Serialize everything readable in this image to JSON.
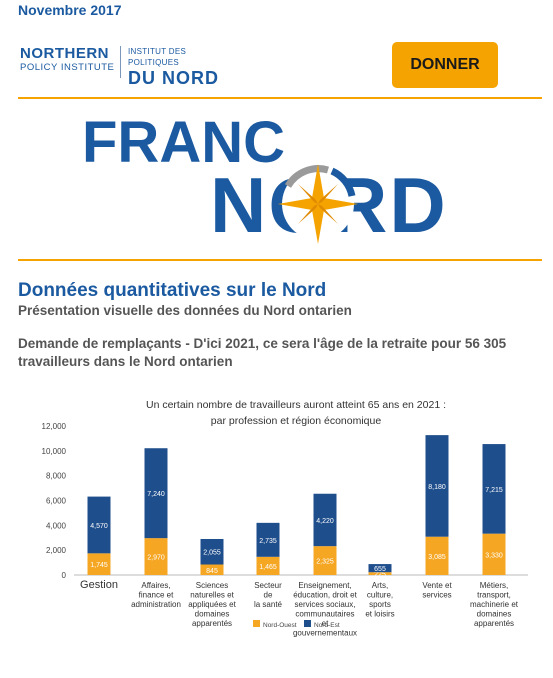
{
  "header": {
    "date": "Novembre 2017",
    "logo": {
      "left_line1": "NORTHERN",
      "left_line2": "POLICY INSTITUTE",
      "right_line1": "INSTITUT DES POLITIQUES",
      "right_line2": "DU NORD"
    },
    "donate_label": "DONNER"
  },
  "banner": {
    "line1": "FRANC",
    "line2": "NORD"
  },
  "content": {
    "title": "Données quantitatives sur le Nord",
    "subtitle": "Présentation visuelle des données du Nord ontarien",
    "description": "Demande de remplaçants - D'ici 2021, ce sera l'âge de la retraite pour 56 305 travailleurs dans le Nord ontarien"
  },
  "colors": {
    "brand_blue": "#1b5aa0",
    "accent_orange": "#f5a300",
    "series_west": "#f5a623",
    "series_east": "#1f4e8c"
  },
  "chart_data": {
    "type": "bar",
    "stacked": true,
    "title": "Un certain nombre de travailleurs auront atteint 65 ans en 2021 :",
    "subtitle": "par profession et région économique",
    "categories": [
      "Gestion",
      "Affaires, finance et administration",
      "Sciences naturelles et appliquées et domaines apparentés",
      "Secteur de la santé",
      "Enseignement, éducation, droit et services sociaux, communautaires et gouvernementaux",
      "Arts, culture, sports et loisirs",
      "Vente et services",
      "Métiers, transport, machinerie et domaines apparentés"
    ],
    "category_lines": [
      [
        "Gestion"
      ],
      [
        "Affaires,",
        "finance et",
        "administration"
      ],
      [
        "Sciences",
        "naturelles et",
        "appliquées et",
        "domaines",
        "apparentés"
      ],
      [
        "Secteur",
        "de",
        "la santé"
      ],
      [
        "Enseignement,",
        "éducation, droit et",
        "services sociaux,",
        "communautaires",
        "et",
        "gouvernementaux"
      ],
      [
        "Arts,",
        "culture,",
        "sports",
        "et loisirs"
      ],
      [
        "Vente et",
        "services"
      ],
      [
        "Métiers,",
        "transport,",
        "machinerie et",
        "domaines",
        "apparentés"
      ]
    ],
    "series": [
      {
        "name": "Nord-Ouest",
        "values": [
          1745,
          2970,
          845,
          1465,
          2325,
          225,
          3085,
          3330
        ],
        "labels": [
          "1,745",
          "2,970",
          "845",
          "1,465",
          "2,325",
          "225",
          "3,085",
          "3,330"
        ]
      },
      {
        "name": "Nord-Est",
        "values": [
          4570,
          7240,
          2055,
          2735,
          4220,
          655,
          8180,
          7215
        ],
        "labels": [
          "4,570",
          "7,240",
          "2,055",
          "2,735",
          "4,220",
          "655",
          "8,180",
          "7,215"
        ]
      }
    ],
    "ylim": [
      0,
      12000
    ],
    "yticks": [
      0,
      2000,
      4000,
      6000,
      8000,
      10000,
      12000
    ],
    "ytick_labels": [
      "0",
      "2,000",
      "4,000",
      "6,000",
      "8,000",
      "10,000",
      "12,000"
    ],
    "legend": "bottom",
    "grid": false
  }
}
